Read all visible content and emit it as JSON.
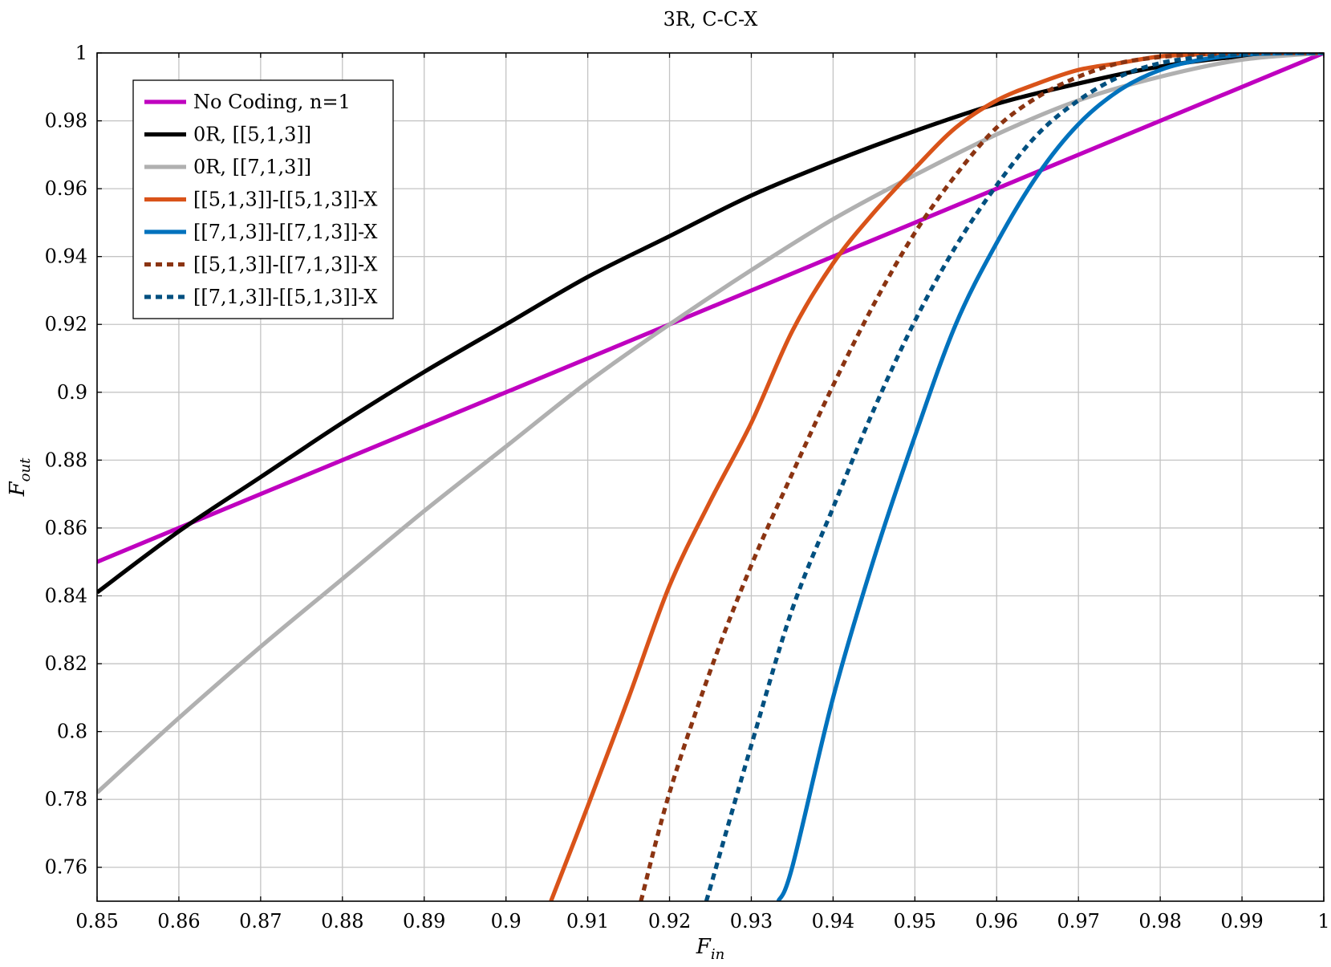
{
  "chart_data": {
    "type": "line",
    "title": "3R, C-C-X",
    "xlabel": {
      "main": "F",
      "sub": "in"
    },
    "ylabel": {
      "main": "F",
      "sub": "out"
    },
    "xlim": [
      0.85,
      1
    ],
    "ylim": [
      0.75,
      1
    ],
    "grid": true,
    "legend_position": "top-left",
    "x_ticks": [
      0.85,
      0.86,
      0.87,
      0.88,
      0.89,
      0.9,
      0.91,
      0.92,
      0.93,
      0.94,
      0.95,
      0.96,
      0.97,
      0.98,
      0.99,
      1
    ],
    "x_tick_labels": [
      "0.85",
      "0.86",
      "0.87",
      "0.88",
      "0.89",
      "0.9",
      "0.91",
      "0.92",
      "0.93",
      "0.94",
      "0.95",
      "0.96",
      "0.97",
      "0.98",
      "0.99",
      "1"
    ],
    "y_ticks": [
      0.76,
      0.78,
      0.8,
      0.82,
      0.84,
      0.86,
      0.88,
      0.9,
      0.92,
      0.94,
      0.96,
      0.98,
      1
    ],
    "y_tick_labels": [
      "0.76",
      "0.78",
      "0.8",
      "0.82",
      "0.84",
      "0.86",
      "0.88",
      "0.9",
      "0.92",
      "0.94",
      "0.96",
      "0.98",
      "1"
    ],
    "series": [
      {
        "name": "No Coding, n=1",
        "color": "#bf00bf",
        "style": "solid",
        "x": [
          0.85,
          1
        ],
        "y": [
          0.85,
          1
        ]
      },
      {
        "name": "0R, [[5,1,3]]",
        "color": "#000000",
        "style": "solid",
        "x": [
          0.85,
          0.86,
          0.87,
          0.88,
          0.89,
          0.9,
          0.91,
          0.92,
          0.93,
          0.94,
          0.95,
          0.96,
          0.97,
          0.98,
          0.99,
          1
        ],
        "y": [
          0.841,
          0.859,
          0.875,
          0.891,
          0.906,
          0.92,
          0.934,
          0.946,
          0.958,
          0.968,
          0.977,
          0.985,
          0.991,
          0.996,
          0.999,
          1.0
        ]
      },
      {
        "name": "0R, [[7,1,3]]",
        "color": "#b0b0b0",
        "style": "solid",
        "x": [
          0.85,
          0.86,
          0.87,
          0.88,
          0.89,
          0.9,
          0.91,
          0.92,
          0.93,
          0.94,
          0.95,
          0.96,
          0.97,
          0.98,
          0.99,
          1
        ],
        "y": [
          0.782,
          0.804,
          0.825,
          0.845,
          0.865,
          0.884,
          0.903,
          0.92,
          0.936,
          0.951,
          0.964,
          0.976,
          0.986,
          0.993,
          0.998,
          1.0
        ]
      },
      {
        "name": "[[5,1,3]]-[[5,1,3]]-X",
        "color": "#d95319",
        "style": "solid",
        "x": [
          0.9055,
          0.91,
          0.915,
          0.92,
          0.925,
          0.93,
          0.935,
          0.94,
          0.945,
          0.95,
          0.955,
          0.96,
          0.965,
          0.97,
          0.975,
          0.98,
          0.985,
          0.99,
          0.995,
          1
        ],
        "y": [
          0.75,
          0.778,
          0.81,
          0.843,
          0.868,
          0.891,
          0.918,
          0.938,
          0.953,
          0.966,
          0.978,
          0.986,
          0.991,
          0.995,
          0.997,
          0.999,
          0.9996,
          0.9999,
          1.0,
          1.0
        ]
      },
      {
        "name": "[[7,1,3]]-[[7,1,3]]-X",
        "color": "#0072bd",
        "style": "solid",
        "x": [
          0.9333,
          0.935,
          0.94,
          0.945,
          0.95,
          0.955,
          0.96,
          0.965,
          0.97,
          0.975,
          0.98,
          0.985,
          0.99,
          0.995,
          1
        ],
        "y": [
          0.75,
          0.76,
          0.81,
          0.851,
          0.887,
          0.92,
          0.944,
          0.964,
          0.979,
          0.989,
          0.995,
          0.998,
          0.9995,
          0.9999,
          1.0
        ]
      },
      {
        "name": "[[5,1,3]]-[[7,1,3]]-X",
        "color": "#8b3412",
        "style": "dashed",
        "x": [
          0.9165,
          0.92,
          0.925,
          0.93,
          0.935,
          0.94,
          0.945,
          0.95,
          0.955,
          0.96,
          0.965,
          0.97,
          0.975,
          0.98,
          0.985,
          0.99,
          0.995,
          1
        ],
        "y": [
          0.75,
          0.782,
          0.818,
          0.849,
          0.876,
          0.902,
          0.926,
          0.947,
          0.964,
          0.978,
          0.987,
          0.993,
          0.997,
          0.9988,
          0.9996,
          0.9999,
          1.0,
          1.0
        ]
      },
      {
        "name": "[[7,1,3]]-[[5,1,3]]-X",
        "color": "#005080",
        "style": "dashed",
        "x": [
          0.9245,
          0.93,
          0.935,
          0.94,
          0.945,
          0.95,
          0.955,
          0.96,
          0.965,
          0.97,
          0.975,
          0.98,
          0.985,
          0.99,
          0.995,
          1
        ],
        "y": [
          0.75,
          0.796,
          0.836,
          0.866,
          0.895,
          0.921,
          0.943,
          0.961,
          0.976,
          0.986,
          0.993,
          0.997,
          0.9988,
          0.9997,
          1.0,
          1.0
        ]
      }
    ]
  }
}
